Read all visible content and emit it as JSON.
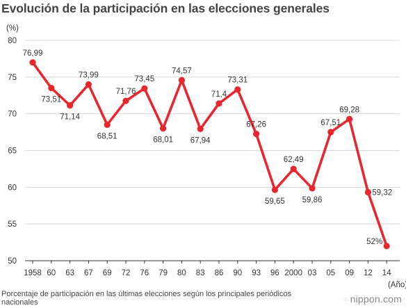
{
  "title": "Evolución de la participación en las elecciones generales",
  "note": "Porcentaje de participación en las últimas elecciones según los principales periódicos nacionales",
  "brand": {
    "icon": "dots-mark-icon",
    "text": "nippon.com"
  },
  "colors": {
    "line": "#e8262d",
    "grid": "#d8d8d8",
    "axis": "#333333",
    "text": "#333333"
  },
  "chart_data": {
    "type": "line",
    "title": "Evolución de la participación en las elecciones generales",
    "ylabel": "(%)",
    "xlabel": "(Año)",
    "ylim": [
      50,
      80
    ],
    "yticks": [
      50,
      55,
      60,
      65,
      70,
      75,
      80
    ],
    "grid": true,
    "categories": [
      "1958",
      "60",
      "63",
      "67",
      "69",
      "72",
      "76",
      "79",
      "80",
      "83",
      "86",
      "90",
      "93",
      "96",
      "2000",
      "03",
      "05",
      "09",
      "12",
      "14"
    ],
    "values": [
      76.99,
      73.51,
      71.14,
      73.99,
      68.51,
      71.76,
      73.45,
      68.01,
      74.57,
      67.94,
      71.4,
      73.31,
      67.26,
      59.65,
      62.49,
      59.86,
      67.51,
      69.28,
      59.32,
      52
    ],
    "data_labels": [
      "76,99",
      "73,51",
      "71,14",
      "73,99",
      "68,51",
      "71,76",
      "73,45",
      "68,01",
      "74,57",
      "67,94",
      "71,4",
      "73,31",
      "67,26",
      "59,65",
      "62,49",
      "59,86",
      "67,51",
      "69,28",
      "59,32",
      "52%"
    ],
    "label_positions": [
      "above",
      "below",
      "below",
      "above",
      "below",
      "above",
      "above",
      "below",
      "above",
      "below",
      "above",
      "above",
      "above",
      "below",
      "above",
      "below",
      "above",
      "above",
      "right",
      "left"
    ]
  }
}
